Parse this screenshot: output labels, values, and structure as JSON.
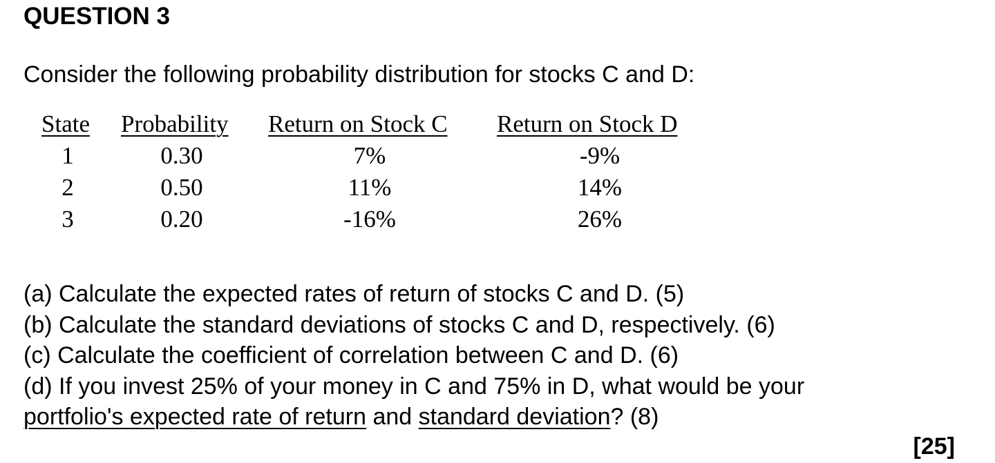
{
  "question": {
    "heading": "QUESTION 3",
    "intro": "Consider the following probability distribution for stocks C and D:"
  },
  "table": {
    "headers": [
      "State",
      "Probability",
      "Return on Stock C",
      "Return on Stock D"
    ],
    "rows": [
      [
        "1",
        "0.30",
        "7%",
        "-9%"
      ],
      [
        "2",
        "0.50",
        "11%",
        "14%"
      ],
      [
        "3",
        "0.20",
        "-16%",
        "26%"
      ]
    ]
  },
  "parts": {
    "a": "(a) Calculate the expected rates of return of stocks C and D. (5)",
    "b": "(b) Calculate the standard deviations of stocks C and D, respectively. (6)",
    "c": "(c) Calculate the coefficient of correlation between C and D. (6)",
    "d_line1": "(d) If you invest 25% of your money in C and 75% in D, what would be your",
    "d_line2_u1": "portfolio's expected rate of return",
    "d_line2_mid": " and ",
    "d_line2_u2": "standard deviation",
    "d_line2_end": "? (8)"
  },
  "total_marks": "[25]"
}
